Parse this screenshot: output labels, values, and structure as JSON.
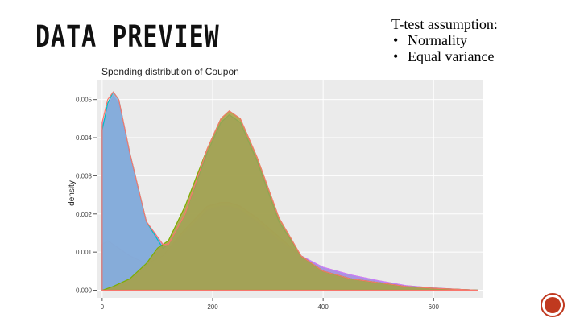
{
  "slide": {
    "title": "DATA PREVIEW",
    "assumptions_heading": "T-test assumption:",
    "assumptions": [
      "Normality",
      "Equal variance"
    ],
    "bullet": "•"
  },
  "theme": {
    "accent": "#c0391f"
  },
  "chart_data": {
    "type": "area",
    "title": "Spending distribution of Coupon",
    "xlabel": "",
    "ylabel": "density",
    "xlim": [
      -10,
      690
    ],
    "ylim": [
      -0.0002,
      0.0055
    ],
    "xticks": [
      0,
      200,
      400,
      600
    ],
    "yticks": [
      0.0,
      0.001,
      0.002,
      0.003,
      0.004,
      0.005
    ],
    "ytick_labels": [
      "0.000",
      "0.001",
      "0.002",
      "0.003",
      "0.004",
      "0.005"
    ],
    "legend": "none",
    "grid": true,
    "series": [
      {
        "color": "#f8766d",
        "fill": "#e8b0a0",
        "x": [
          0,
          10,
          20,
          30,
          50,
          80,
          110,
          150,
          190,
          215,
          230,
          250,
          280,
          320,
          360,
          400,
          450,
          500,
          550,
          600,
          650,
          680
        ],
        "y": [
          0.0012,
          0.0013,
          0.0012,
          0.0011,
          0.0009,
          0.0007,
          0.0009,
          0.0016,
          0.0022,
          0.0023,
          0.0023,
          0.0022,
          0.0019,
          0.0014,
          0.0009,
          0.0006,
          0.0004,
          0.00025,
          0.00012,
          6e-05,
          2e-05,
          0
        ]
      },
      {
        "color": "#c77cff",
        "fill": "#a08ce8",
        "x": [
          0,
          10,
          20,
          30,
          50,
          80,
          110,
          120,
          150,
          190,
          215,
          230,
          250,
          280,
          320,
          360,
          400,
          450,
          500,
          550,
          600,
          650,
          680
        ],
        "y": [
          0.0043,
          0.0048,
          0.0051,
          0.0049,
          0.0035,
          0.0018,
          0.0012,
          0.0011,
          0.0015,
          0.0021,
          0.0022,
          0.0022,
          0.0021,
          0.0018,
          0.0013,
          0.0009,
          0.0006,
          0.0004,
          0.00025,
          0.00012,
          6e-05,
          2e-05,
          0
        ]
      },
      {
        "color": "#00bfc4",
        "fill": "#7fb0d8",
        "x": [
          0,
          10,
          20,
          30,
          50,
          80,
          110,
          120,
          150,
          190,
          215,
          230,
          250,
          280,
          320,
          360,
          400,
          450,
          500,
          550,
          600,
          650,
          680
        ],
        "y": [
          0.0042,
          0.0049,
          0.0052,
          0.005,
          0.0036,
          0.0018,
          0.0011,
          0.0012,
          0.002,
          0.0036,
          0.0044,
          0.0046,
          0.0044,
          0.0034,
          0.0018,
          0.0009,
          0.0005,
          0.0003,
          0.0002,
          0.0001,
          5e-05,
          2e-05,
          0
        ]
      },
      {
        "color": "#7cae00",
        "fill": "#a8a040",
        "x": [
          0,
          20,
          50,
          80,
          100,
          120,
          150,
          190,
          215,
          230,
          250,
          280,
          320,
          360,
          400,
          450,
          500,
          550,
          600,
          650,
          680
        ],
        "y": [
          0,
          0.0001,
          0.0003,
          0.0007,
          0.0011,
          0.0013,
          0.0022,
          0.0037,
          0.0045,
          0.0047,
          0.0045,
          0.0035,
          0.0019,
          0.0009,
          0.0005,
          0.0003,
          0.0002,
          0.0001,
          5e-05,
          2e-05,
          0
        ]
      },
      {
        "color": "#f8766d",
        "fill": "none",
        "x": [
          0,
          10,
          20,
          30,
          50,
          80,
          110,
          120,
          150,
          190,
          215,
          230,
          250,
          280,
          320,
          360,
          400,
          450,
          500,
          550,
          600,
          650,
          680
        ],
        "y": [
          0.0044,
          0.005,
          0.0052,
          0.005,
          0.0036,
          0.0018,
          0.0012,
          0.0012,
          0.002,
          0.0037,
          0.0045,
          0.0047,
          0.0045,
          0.0035,
          0.0019,
          0.0009,
          0.0005,
          0.0003,
          0.0002,
          0.0001,
          5e-05,
          2e-05,
          0
        ]
      }
    ]
  }
}
